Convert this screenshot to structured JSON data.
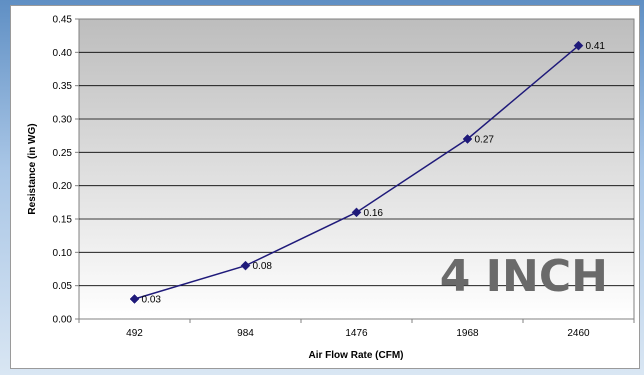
{
  "chart_data": {
    "type": "line",
    "title": "",
    "xlabel": "Air Flow Rate (CFM)",
    "ylabel": "Resistance (in WG)",
    "categories": [
      "492",
      "984",
      "1476",
      "1968",
      "2460"
    ],
    "series": [
      {
        "values": [
          0.03,
          0.08,
          0.16,
          0.27,
          0.41
        ],
        "data_labels": [
          "0.03",
          "0.08",
          "0.16",
          "0.27",
          "0.41"
        ]
      }
    ],
    "ylim": [
      0,
      0.45
    ],
    "y_ticks": [
      "0.00",
      "0.05",
      "0.10",
      "0.15",
      "0.20",
      "0.25",
      "0.30",
      "0.35",
      "0.40",
      "0.45"
    ],
    "grid": true,
    "legend": "none",
    "line_color": "#1f1a7a",
    "marker": "diamond",
    "annotation": "4 INCH"
  }
}
